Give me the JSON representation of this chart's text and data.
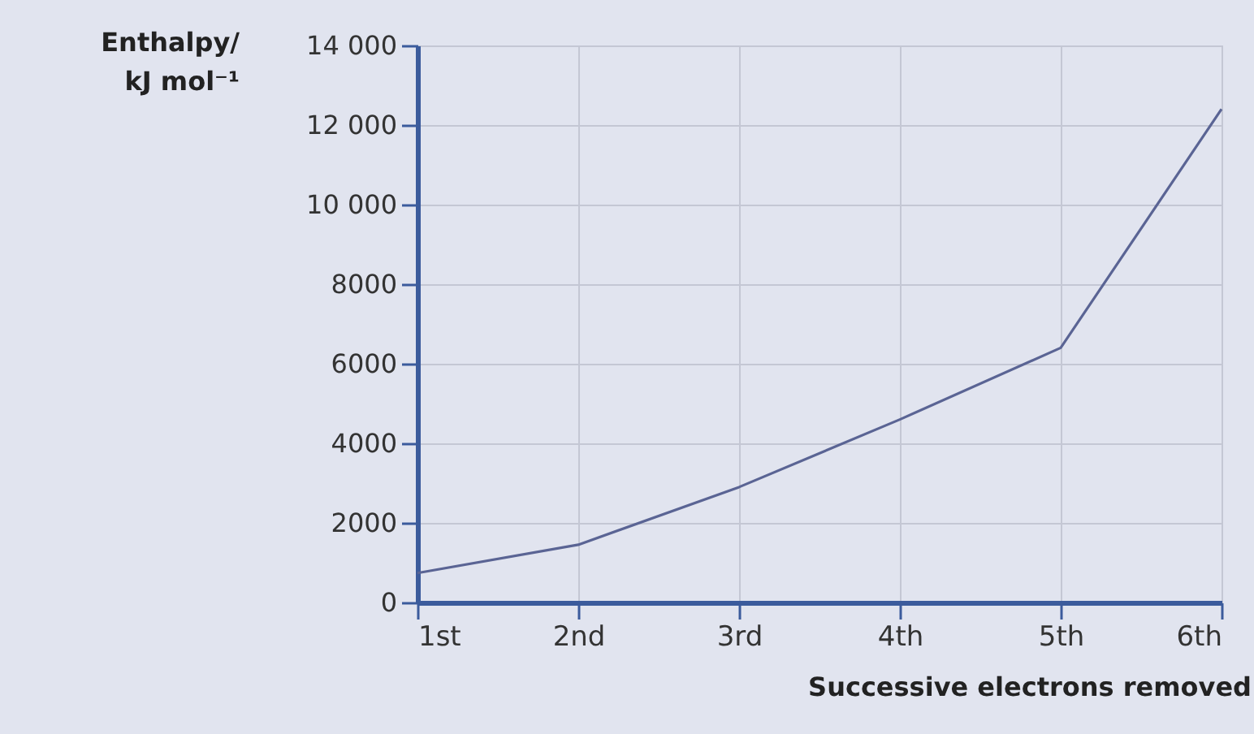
{
  "chart_data": {
    "type": "line",
    "xlabel": "Successive electrons removed",
    "ylabel": "Enthalpy/ kJ mol⁻¹",
    "categories": [
      "1st",
      "2nd",
      "3rd",
      "4th",
      "5th",
      "6th"
    ],
    "series": [
      {
        "color": "#5a6494",
        "values": [
          740,
          1450,
          2900,
          4600,
          6400,
          12400
        ]
      }
    ],
    "ylim": [
      0,
      14000
    ],
    "yticks": [
      0,
      2000,
      4000,
      6000,
      8000,
      {
        "value": 10000,
        "label": "10 000"
      },
      {
        "value": 12000,
        "label": "12 000"
      },
      {
        "value": 14000,
        "label": "14 000"
      }
    ],
    "grid": true,
    "legend": false,
    "marker": "none",
    "line_style": "solid"
  }
}
